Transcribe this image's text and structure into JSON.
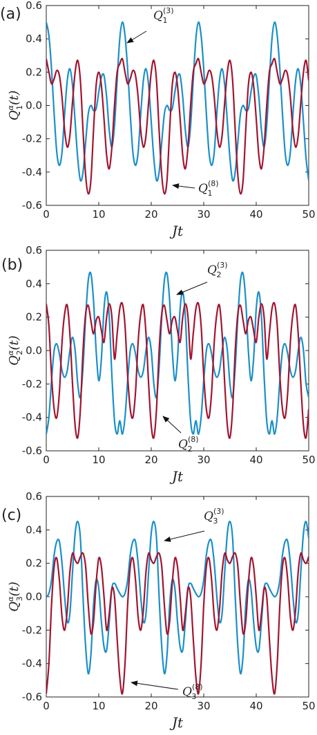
{
  "chart_data": [
    {
      "type": "line",
      "panel_label": "(a)",
      "xlabel": "Jt",
      "ylabel": {
        "base": "Q",
        "sub": "1",
        "sup": "α",
        "tail": "(t)"
      },
      "xlim": [
        0,
        50
      ],
      "xticks": [
        0,
        10,
        20,
        30,
        40,
        50
      ],
      "ylim": [
        -0.6,
        0.6
      ],
      "yticks": [
        -0.6,
        -0.4,
        -0.2,
        {
          "value": 0,
          "label": "0.0"
        },
        0.2,
        0.4,
        0.6
      ],
      "x": [
        0,
        0.5,
        1,
        1.5,
        2,
        2.5,
        3,
        3.5,
        4,
        4.5,
        5,
        5.5,
        6,
        6.5,
        7,
        7.5,
        8,
        8.5,
        9,
        9.5,
        10,
        10.5,
        11,
        11.5,
        12,
        12.5,
        13,
        13.5,
        14,
        14.5,
        15,
        15.5,
        16,
        16.5,
        17,
        17.5,
        18,
        18.5,
        19,
        19.5,
        20,
        20.5,
        21,
        21.5,
        22,
        22.5,
        23,
        23.5,
        24,
        24.5,
        25,
        25.5,
        26,
        26.5,
        27,
        27.5,
        28,
        28.5,
        29,
        29.5,
        30,
        30.5,
        31,
        31.5,
        32,
        32.5,
        33,
        33.5,
        34,
        34.5,
        35,
        35.5,
        36,
        36.5,
        37,
        37.5,
        38,
        38.5,
        39,
        39.5,
        40,
        40.5,
        41,
        41.5,
        42,
        42.5,
        43,
        43.5,
        44,
        44.5,
        45,
        45.5,
        46,
        46.5,
        47,
        47.5,
        48,
        48.5,
        49,
        49.5,
        50
      ],
      "series": [
        {
          "name": {
            "base": "Q",
            "sub": "1",
            "sup": "(3)"
          },
          "color": "#1a8fc9",
          "values": [
            0.5,
            0.42,
            0.22,
            -0.05,
            -0.28,
            -0.36,
            -0.28,
            -0.05,
            0.15,
            0.22,
            0.12,
            -0.1,
            -0.32,
            -0.45,
            -0.4,
            -0.22,
            -0.05,
            0,
            -0.03,
            -0.02,
            0.08,
            0.17,
            0.18,
            0.05,
            -0.15,
            -0.25,
            -0.12,
            0.15,
            0.4,
            0.5,
            0.42,
            0.22,
            -0.05,
            -0.28,
            -0.36,
            -0.28,
            -0.05,
            0.15,
            0.22,
            0.12,
            -0.1,
            -0.32,
            -0.45,
            -0.4,
            -0.22,
            -0.05,
            0,
            -0.03,
            -0.02,
            0.08,
            0.17,
            0.18,
            0.05,
            -0.15,
            -0.25,
            -0.12,
            0.15,
            0.4,
            0.5,
            0.42,
            0.22,
            -0.05,
            -0.28,
            -0.36,
            -0.28,
            -0.05,
            0.15,
            0.22,
            0.12,
            -0.1,
            -0.32,
            -0.45,
            -0.4,
            -0.22,
            -0.05,
            0,
            -0.03,
            -0.02,
            0.08,
            0.17,
            0.18,
            0.05,
            -0.15,
            -0.25,
            -0.12,
            0.15,
            0.4,
            0.5,
            0.42,
            0.22,
            -0.05,
            -0.28,
            -0.36,
            -0.28,
            -0.05,
            0.15,
            0.22,
            0.12,
            -0.1,
            -0.32,
            -0.45
          ]
        },
        {
          "name": {
            "base": "Q",
            "sub": "1",
            "sup": "(8)"
          },
          "color": "#a2142f",
          "values": [
            0.28,
            0.2,
            0.13,
            0.16,
            0.21,
            0.18,
            0.05,
            -0.15,
            -0.25,
            -0.18,
            0.02,
            0.2,
            0.27,
            0.15,
            -0.15,
            -0.42,
            -0.53,
            -0.45,
            -0.15,
            0.12,
            0.2,
            0.12,
            -0.08,
            -0.3,
            -0.38,
            -0.25,
            0,
            0.2,
            0.25,
            0.28,
            0.2,
            0.13,
            0.16,
            0.21,
            0.18,
            0.05,
            -0.15,
            -0.25,
            -0.18,
            0.02,
            0.2,
            0.27,
            0.15,
            -0.15,
            -0.42,
            -0.53,
            -0.45,
            -0.15,
            0.12,
            0.2,
            0.12,
            -0.08,
            -0.3,
            -0.38,
            -0.25,
            0,
            0.2,
            0.25,
            0.28,
            0.2,
            0.13,
            0.16,
            0.21,
            0.18,
            0.05,
            -0.15,
            -0.25,
            -0.18,
            0.02,
            0.2,
            0.27,
            0.15,
            -0.15,
            -0.42,
            -0.53,
            -0.45,
            -0.15,
            0.12,
            0.2,
            0.12,
            -0.08,
            -0.3,
            -0.38,
            -0.25,
            0,
            0.2,
            0.25,
            0.28,
            0.2,
            0.13,
            0.16,
            0.21,
            0.18,
            0.05,
            -0.15,
            -0.25,
            -0.18,
            0.02,
            0.2,
            0.27,
            0.15
          ]
        }
      ]
    },
    {
      "type": "line",
      "panel_label": "(b)",
      "xlabel": "Jt",
      "ylabel": {
        "base": "Q",
        "sub": "2",
        "sup": "α",
        "tail": "(t)"
      },
      "xlim": [
        0,
        50
      ],
      "xticks": [
        0,
        10,
        20,
        30,
        40,
        50
      ],
      "ylim": [
        -0.6,
        0.6
      ],
      "yticks": [
        -0.6,
        -0.4,
        -0.2,
        {
          "value": 0,
          "label": "0.0"
        },
        0.2,
        0.4,
        0.6
      ],
      "x": [
        0,
        0.5,
        1,
        1.5,
        2,
        2.5,
        3,
        3.5,
        4,
        4.5,
        5,
        5.5,
        6,
        6.5,
        7,
        7.5,
        8,
        8.5,
        9,
        9.5,
        10,
        10.5,
        11,
        11.5,
        12,
        12.5,
        13,
        13.5,
        14,
        14.5,
        15,
        15.5,
        16,
        16.5,
        17,
        17.5,
        18,
        18.5,
        19,
        19.5,
        20,
        20.5,
        21,
        21.5,
        22,
        22.5,
        23,
        23.5,
        24,
        24.5,
        25,
        25.5,
        26,
        26.5,
        27,
        27.5,
        28,
        28.5,
        29,
        29.5,
        30,
        30.5,
        31,
        31.5,
        32,
        32.5,
        33,
        33.5,
        34,
        34.5,
        35,
        35.5,
        36,
        36.5,
        37,
        37.5,
        38,
        38.5,
        39,
        39.5,
        40,
        40.5,
        41,
        41.5,
        42,
        42.5,
        43,
        43.5,
        44,
        44.5,
        45,
        45.5,
        46,
        46.5,
        47,
        47.5,
        48,
        48.5,
        49,
        49.5,
        50
      ],
      "series": [
        {
          "name": {
            "base": "Q",
            "sub": "2",
            "sup": "(3)"
          },
          "color": "#1a8fc9",
          "values": [
            -0.5,
            -0.4,
            -0.18,
            0,
            0.04,
            -0.02,
            -0.12,
            -0.16,
            -0.12,
            0,
            0.08,
            0,
            -0.2,
            -0.28,
            -0.1,
            0.2,
            0.42,
            0.46,
            0.3,
            0,
            -0.18,
            -0.05,
            0.25,
            0.35,
            0.2,
            -0.15,
            -0.42,
            -0.5,
            -0.42,
            -0.5,
            -0.4,
            -0.18,
            0,
            0.04,
            -0.02,
            -0.12,
            -0.16,
            -0.12,
            0,
            0.08,
            0,
            -0.2,
            -0.28,
            -0.1,
            0.2,
            0.42,
            0.46,
            0.3,
            0,
            -0.18,
            -0.05,
            0.25,
            0.35,
            0.2,
            -0.15,
            -0.42,
            -0.5,
            -0.42,
            -0.5,
            -0.4,
            -0.18,
            0,
            0.04,
            -0.02,
            -0.12,
            -0.16,
            -0.12,
            0,
            0.08,
            0,
            -0.2,
            -0.28,
            -0.1,
            0.2,
            0.42,
            0.46,
            0.3,
            0,
            -0.18,
            -0.05,
            0.25,
            0.35,
            0.2,
            -0.15,
            -0.42,
            -0.5,
            -0.42,
            -0.5,
            -0.4,
            -0.18,
            0,
            0.04,
            -0.02,
            -0.12,
            -0.16,
            -0.12,
            0,
            0.08,
            0,
            -0.2,
            -0.28
          ]
        },
        {
          "name": {
            "base": "Q",
            "sub": "2",
            "sup": "(8)"
          },
          "color": "#a2142f",
          "values": [
            0.28,
            0.15,
            -0.15,
            -0.35,
            -0.4,
            -0.25,
            0.05,
            0.22,
            0.27,
            0.1,
            -0.2,
            -0.45,
            -0.52,
            -0.35,
            0,
            0.22,
            0.27,
            0.18,
            0.1,
            0.18,
            0.2,
            0.12,
            0.05,
            0.2,
            0.28,
            0.2,
            -0.05,
            0.1,
            0.25,
            0.28,
            0.15,
            -0.15,
            -0.35,
            -0.4,
            -0.25,
            0.05,
            0.22,
            0.27,
            0.1,
            -0.2,
            -0.45,
            -0.52,
            -0.35,
            0,
            0.22,
            0.27,
            0.18,
            0.1,
            0.18,
            0.2,
            0.12,
            0.05,
            0.2,
            0.28,
            0.2,
            -0.05,
            0.1,
            0.25,
            0.28,
            0.15,
            -0.15,
            -0.35,
            -0.4,
            -0.25,
            0.05,
            0.22,
            0.27,
            0.1,
            -0.2,
            -0.45,
            -0.52,
            -0.35,
            0,
            0.22,
            0.27,
            0.18,
            0.1,
            0.18,
            0.2,
            0.12,
            0.05,
            0.2,
            0.28,
            0.2,
            -0.05,
            0.1,
            0.25,
            0.28,
            0.15,
            -0.15,
            -0.35,
            -0.4,
            -0.25,
            0.05,
            0.22,
            0.27,
            0.1,
            -0.2,
            -0.45,
            -0.52,
            -0.35
          ]
        }
      ]
    },
    {
      "type": "line",
      "panel_label": "(c)",
      "xlabel": "Jt",
      "ylabel": {
        "base": "Q",
        "sub": "3",
        "sup": "α",
        "tail": "(t)"
      },
      "xlim": [
        0,
        50
      ],
      "xticks": [
        0,
        10,
        20,
        30,
        40,
        50
      ],
      "ylim": [
        -0.6,
        0.6
      ],
      "yticks": [
        -0.6,
        -0.4,
        -0.2,
        {
          "value": 0,
          "label": "0.0"
        },
        0.2,
        0.4,
        0.6
      ],
      "x": [
        0,
        0.5,
        1,
        1.5,
        2,
        2.5,
        3,
        3.5,
        4,
        4.5,
        5,
        5.5,
        6,
        6.5,
        7,
        7.5,
        8,
        8.5,
        9,
        9.5,
        10,
        10.5,
        11,
        11.5,
        12,
        12.5,
        13,
        13.5,
        14,
        14.5,
        15,
        15.5,
        16,
        16.5,
        17,
        17.5,
        18,
        18.5,
        19,
        19.5,
        20,
        20.5,
        21,
        21.5,
        22,
        22.5,
        23,
        23.5,
        24,
        24.5,
        25,
        25.5,
        26,
        26.5,
        27,
        27.5,
        28,
        28.5,
        29,
        29.5,
        30,
        30.5,
        31,
        31.5,
        32,
        32.5,
        33,
        33.5,
        34,
        34.5,
        35,
        35.5,
        36,
        36.5,
        37,
        37.5,
        38,
        38.5,
        39,
        39.5,
        40,
        40.5,
        41,
        41.5,
        42,
        42.5,
        43,
        43.5,
        44,
        44.5,
        45,
        45.5,
        46,
        46.5,
        47,
        47.5,
        48,
        48.5,
        49,
        49.5,
        50
      ],
      "series": [
        {
          "name": {
            "base": "Q",
            "sub": "3",
            "sup": "(3)"
          },
          "color": "#1a8fc9",
          "values": [
            0,
            0.02,
            0.1,
            0.25,
            0.33,
            0.33,
            0.2,
            0,
            -0.15,
            -0.1,
            0.15,
            0.38,
            0.45,
            0.35,
            0,
            -0.3,
            -0.46,
            -0.35,
            -0.05,
            0.1,
            0.05,
            -0.15,
            -0.3,
            -0.32,
            -0.15,
            0.05,
            0.08,
            0.05,
            0.02,
            0,
            0.02,
            0.1,
            0.25,
            0.33,
            0.33,
            0.2,
            0,
            -0.15,
            -0.1,
            0.15,
            0.38,
            0.45,
            0.35,
            0,
            -0.3,
            -0.46,
            -0.35,
            -0.05,
            0.1,
            0.05,
            -0.15,
            -0.3,
            -0.32,
            -0.15,
            0.05,
            0.08,
            0.05,
            0.02,
            0,
            0.02,
            0.1,
            0.25,
            0.33,
            0.33,
            0.2,
            0,
            -0.15,
            -0.1,
            0.15,
            0.38,
            0.45,
            0.35,
            0,
            -0.3,
            -0.46,
            -0.35,
            -0.05,
            0.1,
            0.05,
            -0.15,
            -0.3,
            -0.32,
            -0.15,
            0.05,
            0.08,
            0.05,
            0.02,
            0,
            0.02,
            0.1,
            0.25,
            0.33,
            0.33,
            0.2,
            0,
            -0.15,
            -0.1,
            0.15,
            0.38,
            0.45,
            0.35
          ]
        },
        {
          "name": {
            "base": "Q",
            "sub": "3",
            "sup": "(8)"
          },
          "color": "#a2142f",
          "values": [
            -0.58,
            -0.4,
            -0.05,
            0.18,
            0.23,
            0.1,
            -0.12,
            -0.2,
            -0.08,
            0.15,
            0.26,
            0.22,
            0.2,
            0.24,
            0.26,
            0.18,
            -0.05,
            -0.22,
            -0.15,
            0.08,
            0.23,
            0.18,
            0,
            -0.2,
            -0.1,
            0.05,
            0,
            -0.25,
            -0.48,
            -0.58,
            -0.4,
            -0.05,
            0.18,
            0.23,
            0.1,
            -0.12,
            -0.2,
            -0.08,
            0.15,
            0.26,
            0.22,
            0.2,
            0.24,
            0.26,
            0.18,
            -0.05,
            -0.22,
            -0.15,
            0.08,
            0.23,
            0.18,
            0,
            -0.2,
            -0.1,
            0.05,
            0,
            -0.25,
            -0.48,
            -0.58,
            -0.4,
            -0.05,
            0.18,
            0.23,
            0.1,
            -0.12,
            -0.2,
            -0.08,
            0.15,
            0.26,
            0.22,
            0.2,
            0.24,
            0.26,
            0.18,
            -0.05,
            -0.22,
            -0.15,
            0.08,
            0.23,
            0.18,
            0,
            -0.2,
            -0.1,
            0.05,
            0,
            -0.25,
            -0.48,
            -0.58,
            -0.4,
            -0.05,
            0.18,
            0.23,
            0.1,
            -0.12,
            -0.2,
            -0.08,
            0.15,
            0.26,
            0.22,
            0.2,
            0.24
          ]
        }
      ]
    }
  ]
}
